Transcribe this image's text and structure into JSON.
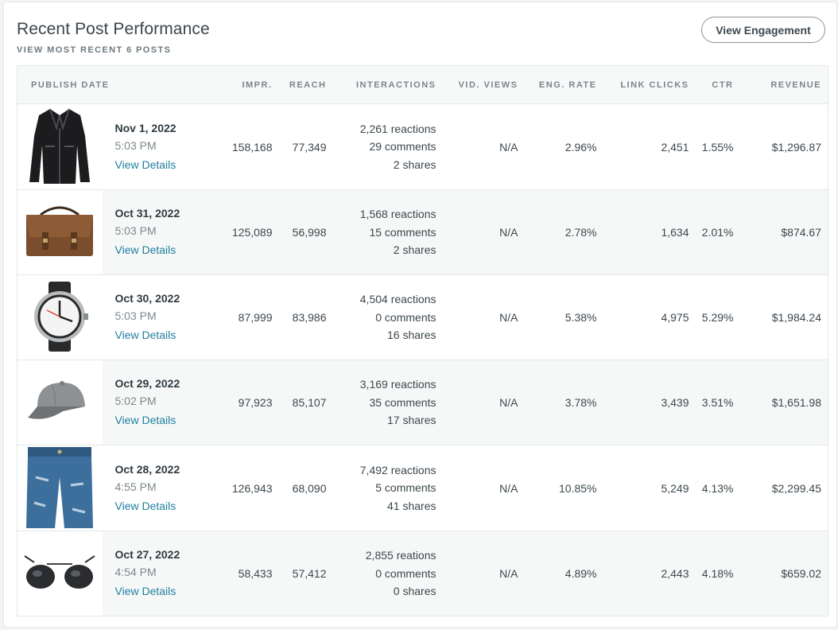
{
  "header": {
    "title": "Recent Post Performance",
    "subtitle": "VIEW MOST RECENT 6 POSTS",
    "button_label": "View Engagement"
  },
  "columns": {
    "publish_date": "PUBLISH DATE",
    "impr": "IMPR.",
    "reach": "REACH",
    "interactions": "INTERACTIONS",
    "vid_views": "VID. VIEWS",
    "eng_rate": "ENG. RATE",
    "link_clicks": "LINK CLICKS",
    "ctr": "CTR",
    "revenue": "REVENUE"
  },
  "details_label": "View Details",
  "rows": [
    {
      "image": "leather-jacket",
      "date": "Nov 1, 2022",
      "time": "5:03 PM",
      "impr": "158,168",
      "reach": "77,349",
      "reactions": "2,261 reactions",
      "comments": "29 comments",
      "shares": "2 shares",
      "vid_views": "N/A",
      "eng_rate": "2.96%",
      "link_clicks": "2,451",
      "ctr": "1.55%",
      "revenue": "$1,296.87"
    },
    {
      "image": "leather-bag",
      "date": "Oct 31, 2022",
      "time": "5:03 PM",
      "impr": "125,089",
      "reach": "56,998",
      "reactions": "1,568 reactions",
      "comments": "15 comments",
      "shares": "2 shares",
      "vid_views": "N/A",
      "eng_rate": "2.78%",
      "link_clicks": "1,634",
      "ctr": "2.01%",
      "revenue": "$874.67"
    },
    {
      "image": "wrist-watch",
      "date": "Oct 30, 2022",
      "time": "5:03 PM",
      "impr": "87,999",
      "reach": "83,986",
      "reactions": "4,504 reactions",
      "comments": "0 comments",
      "shares": "16 shares",
      "vid_views": "N/A",
      "eng_rate": "5.38%",
      "link_clicks": "4,975",
      "ctr": "5.29%",
      "revenue": "$1,984.24"
    },
    {
      "image": "baseball-cap",
      "date": "Oct 29, 2022",
      "time": "5:02 PM",
      "impr": "97,923",
      "reach": "85,107",
      "reactions": "3,169 reactions",
      "comments": "35 comments",
      "shares": "17 shares",
      "vid_views": "N/A",
      "eng_rate": "3.78%",
      "link_clicks": "3,439",
      "ctr": "3.51%",
      "revenue": "$1,651.98"
    },
    {
      "image": "jeans",
      "date": "Oct 28, 2022",
      "time": "4:55 PM",
      "impr": "126,943",
      "reach": "68,090",
      "reactions": "7,492 reactions",
      "comments": "5 comments",
      "shares": "41 shares",
      "vid_views": "N/A",
      "eng_rate": "10.85%",
      "link_clicks": "5,249",
      "ctr": "4.13%",
      "revenue": "$2,299.45"
    },
    {
      "image": "sunglasses",
      "date": "Oct 27, 2022",
      "time": "4:54 PM",
      "impr": "58,433",
      "reach": "57,412",
      "reactions": "2,855 reations",
      "comments": "0 comments",
      "shares": "0 shares",
      "vid_views": "N/A",
      "eng_rate": "4.89%",
      "link_clicks": "2,443",
      "ctr": "4.18%",
      "revenue": "$659.02"
    }
  ]
}
